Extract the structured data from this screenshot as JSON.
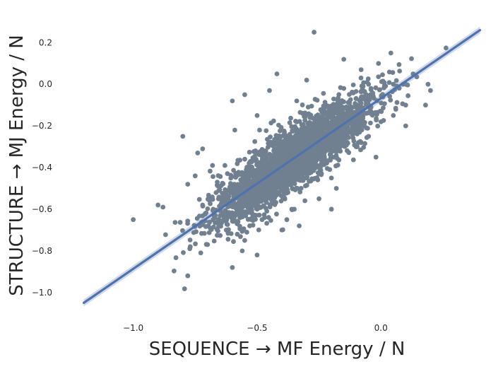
{
  "chart_data": {
    "type": "scatter",
    "title": "",
    "xlabel": "SEQUENCE  → MF Energy / N",
    "ylabel": "STRUCTURE  → MJ Energy / N",
    "xlim": [
      -1.23,
      0.43
    ],
    "ylim": [
      -1.14,
      0.33
    ],
    "x_ticks": [
      -1.0,
      -0.5,
      0.0
    ],
    "x_tick_labels": [
      "−1.0",
      "−0.5",
      "0.0"
    ],
    "y_ticks": [
      0.2,
      0.0,
      -0.2,
      -0.4,
      -0.6,
      -0.8,
      -1.0
    ],
    "y_tick_labels": [
      "0.2",
      "0.0",
      "−0.2",
      "−0.4",
      "−0.6",
      "−0.8",
      "−1.0"
    ],
    "grid": false,
    "legend": "none",
    "colors": {
      "points": "#708090",
      "fit_line": "#4c72b0",
      "fit_band": "#c5cfe0",
      "text": "#262626"
    },
    "series": [
      {
        "kind": "points",
        "x": [
          -1.0,
          -0.9,
          -0.88,
          -0.78,
          -0.8,
          -0.77,
          -0.72,
          -0.7,
          -0.72,
          -0.78,
          -0.75,
          -0.68,
          -0.65,
          -0.74,
          -0.63,
          -0.72,
          -0.6,
          -0.58,
          -0.55,
          -0.56,
          -0.59,
          -0.49,
          -0.45,
          -0.4,
          -0.5,
          -0.33,
          -0.38,
          -0.3,
          -0.36,
          -0.25,
          -0.28,
          -0.2,
          -0.27,
          -0.34,
          -0.15,
          -0.08,
          -0.05,
          -0.04,
          0.04,
          0.09,
          0.1,
          0.05,
          0.06,
          0.13,
          0.1,
          0.18,
          0.2,
          0.19,
          -0.01,
          0.0,
          -0.15,
          -0.3,
          -0.42,
          -0.45,
          -0.5,
          -0.55,
          -0.6,
          -0.65,
          -0.58,
          -0.55,
          -0.5,
          -0.48,
          -0.4,
          -0.35,
          -0.2,
          -0.18,
          -0.25,
          -0.05,
          -0.1,
          -0.02,
          0.05,
          0.1
        ],
        "y": [
          -0.65,
          -0.58,
          -0.59,
          -0.92,
          -0.25,
          -0.78,
          -0.66,
          -0.77,
          -0.31,
          -0.48,
          -0.44,
          -0.39,
          -0.66,
          -0.33,
          -0.39,
          -0.58,
          -0.88,
          -0.52,
          -0.5,
          -0.8,
          -0.22,
          -0.22,
          -0.45,
          -0.5,
          -0.6,
          -0.68,
          -0.65,
          -0.45,
          -0.6,
          -0.43,
          -0.3,
          -0.45,
          0.25,
          -0.08,
          -0.02,
          0.07,
          0.0,
          -0.02,
          0.15,
          0.0,
          0.0,
          0.0,
          -0.12,
          0.05,
          -0.1,
          -0.1,
          -0.03,
          0.0,
          0.1,
          -0.18,
          0.12,
          0.02,
          0.05,
          -0.03,
          -0.15,
          -0.05,
          -0.08,
          -0.68,
          -0.72,
          -0.75,
          -0.82,
          -0.65,
          -0.7,
          -0.6,
          -0.6,
          -0.5,
          -0.55,
          -0.25,
          -0.3,
          -0.35,
          -0.15,
          -0.2
        ]
      },
      {
        "kind": "regression_line",
        "name": "",
        "x": [
          -1.2,
          0.4
        ],
        "y": [
          -1.05,
          0.26
        ]
      }
    ]
  }
}
